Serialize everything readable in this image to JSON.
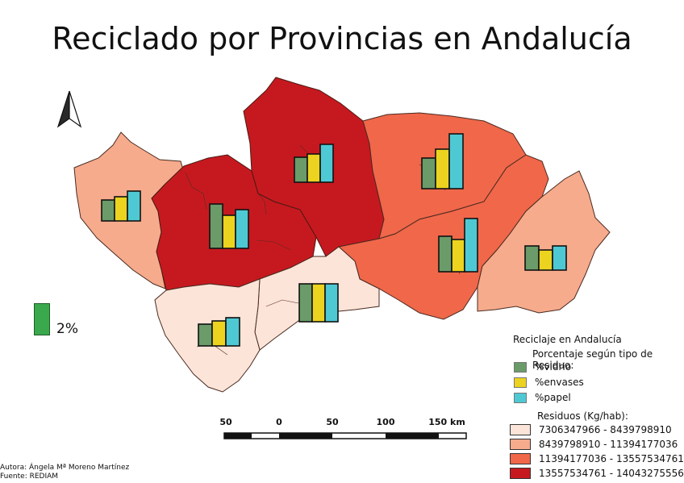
{
  "title": "Reciclado por Provincias en Andalucía",
  "legend": {
    "heading": "Reciclaje en Andalucía",
    "subheading": "Porcentaje según tipo de Residuo:",
    "types": [
      {
        "label": "%vidrio",
        "color": "#6a9b69"
      },
      {
        "label": "%envases",
        "color": "#ecd31f"
      },
      {
        "label": "%papel",
        "color": "#4ec9d3"
      }
    ],
    "residuos_heading": "Residuos (Kg/hab):",
    "classes": [
      {
        "label": "7306347966 - 8439798910",
        "color": "#fce4d8"
      },
      {
        "label": "8439798910 - 11394177036",
        "color": "#f6ab8c"
      },
      {
        "label": "11394177036 - 13557534761",
        "color": "#f0674a"
      },
      {
        "label": "13557534761 - 14043275556",
        "color": "#c6191f"
      }
    ]
  },
  "size_legend": {
    "label": "2%"
  },
  "scalebar": {
    "labels": [
      "50",
      "0",
      "50",
      "100",
      "150 km"
    ]
  },
  "credits": {
    "author": "Autora: Ángela Mª Moreno Martínez",
    "source": "Fuente: REDIAM"
  },
  "north_arrow": "north-arrow-icon"
}
